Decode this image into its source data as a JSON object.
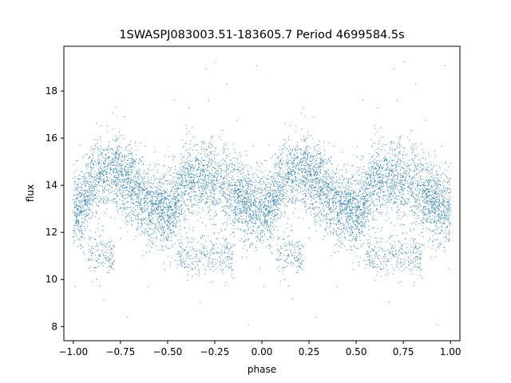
{
  "chart_data": {
    "type": "scatter",
    "title": "1SWASPJ083003.51-183605.7 Period 4699584.5s",
    "xlabel": "phase",
    "ylabel": "flux",
    "xlim": [
      -1.05,
      1.05
    ],
    "ylim": [
      7.4,
      19.9
    ],
    "x_ticks": [
      -1.0,
      -0.75,
      -0.5,
      -0.25,
      0.0,
      0.25,
      0.5,
      0.75,
      1.0
    ],
    "x_tick_labels": [
      "−1.00",
      "−0.75",
      "−0.50",
      "−0.25",
      "0.00",
      "0.25",
      "0.50",
      "0.75",
      "1.00"
    ],
    "y_ticks": [
      8,
      10,
      12,
      14,
      16,
      18
    ],
    "y_tick_labels": [
      "8",
      "10",
      "12",
      "14",
      "16",
      "18"
    ],
    "grid": false,
    "legend": "none",
    "marker_color": "#1f77b4",
    "series": [
      {
        "phase_range": [
          -1.0,
          1.0
        ],
        "profile_phase": [
          0.0,
          0.05,
          0.1,
          0.15,
          0.2,
          0.25,
          0.3,
          0.35,
          0.4,
          0.45,
          0.5,
          0.55,
          0.6,
          0.65,
          0.7,
          0.75,
          0.8,
          0.85,
          0.9,
          0.95,
          1.0
        ],
        "profile_flux": [
          13.0,
          13.2,
          14.2,
          14.5,
          14.6,
          14.5,
          14.0,
          13.6,
          13.3,
          13.0,
          12.8,
          13.4,
          14.3,
          14.2,
          14.3,
          14.1,
          14.0,
          13.7,
          13.4,
          13.2,
          13.0
        ],
        "low_branch_phase": [
          [
            0.08,
            0.22
          ],
          [
            0.55,
            0.85
          ]
        ],
        "low_branch_flux": 11.0,
        "scatter_sd": 0.8,
        "n_points": 9000,
        "flux_extremes": [
          7.9,
          19.3
        ]
      }
    ]
  }
}
